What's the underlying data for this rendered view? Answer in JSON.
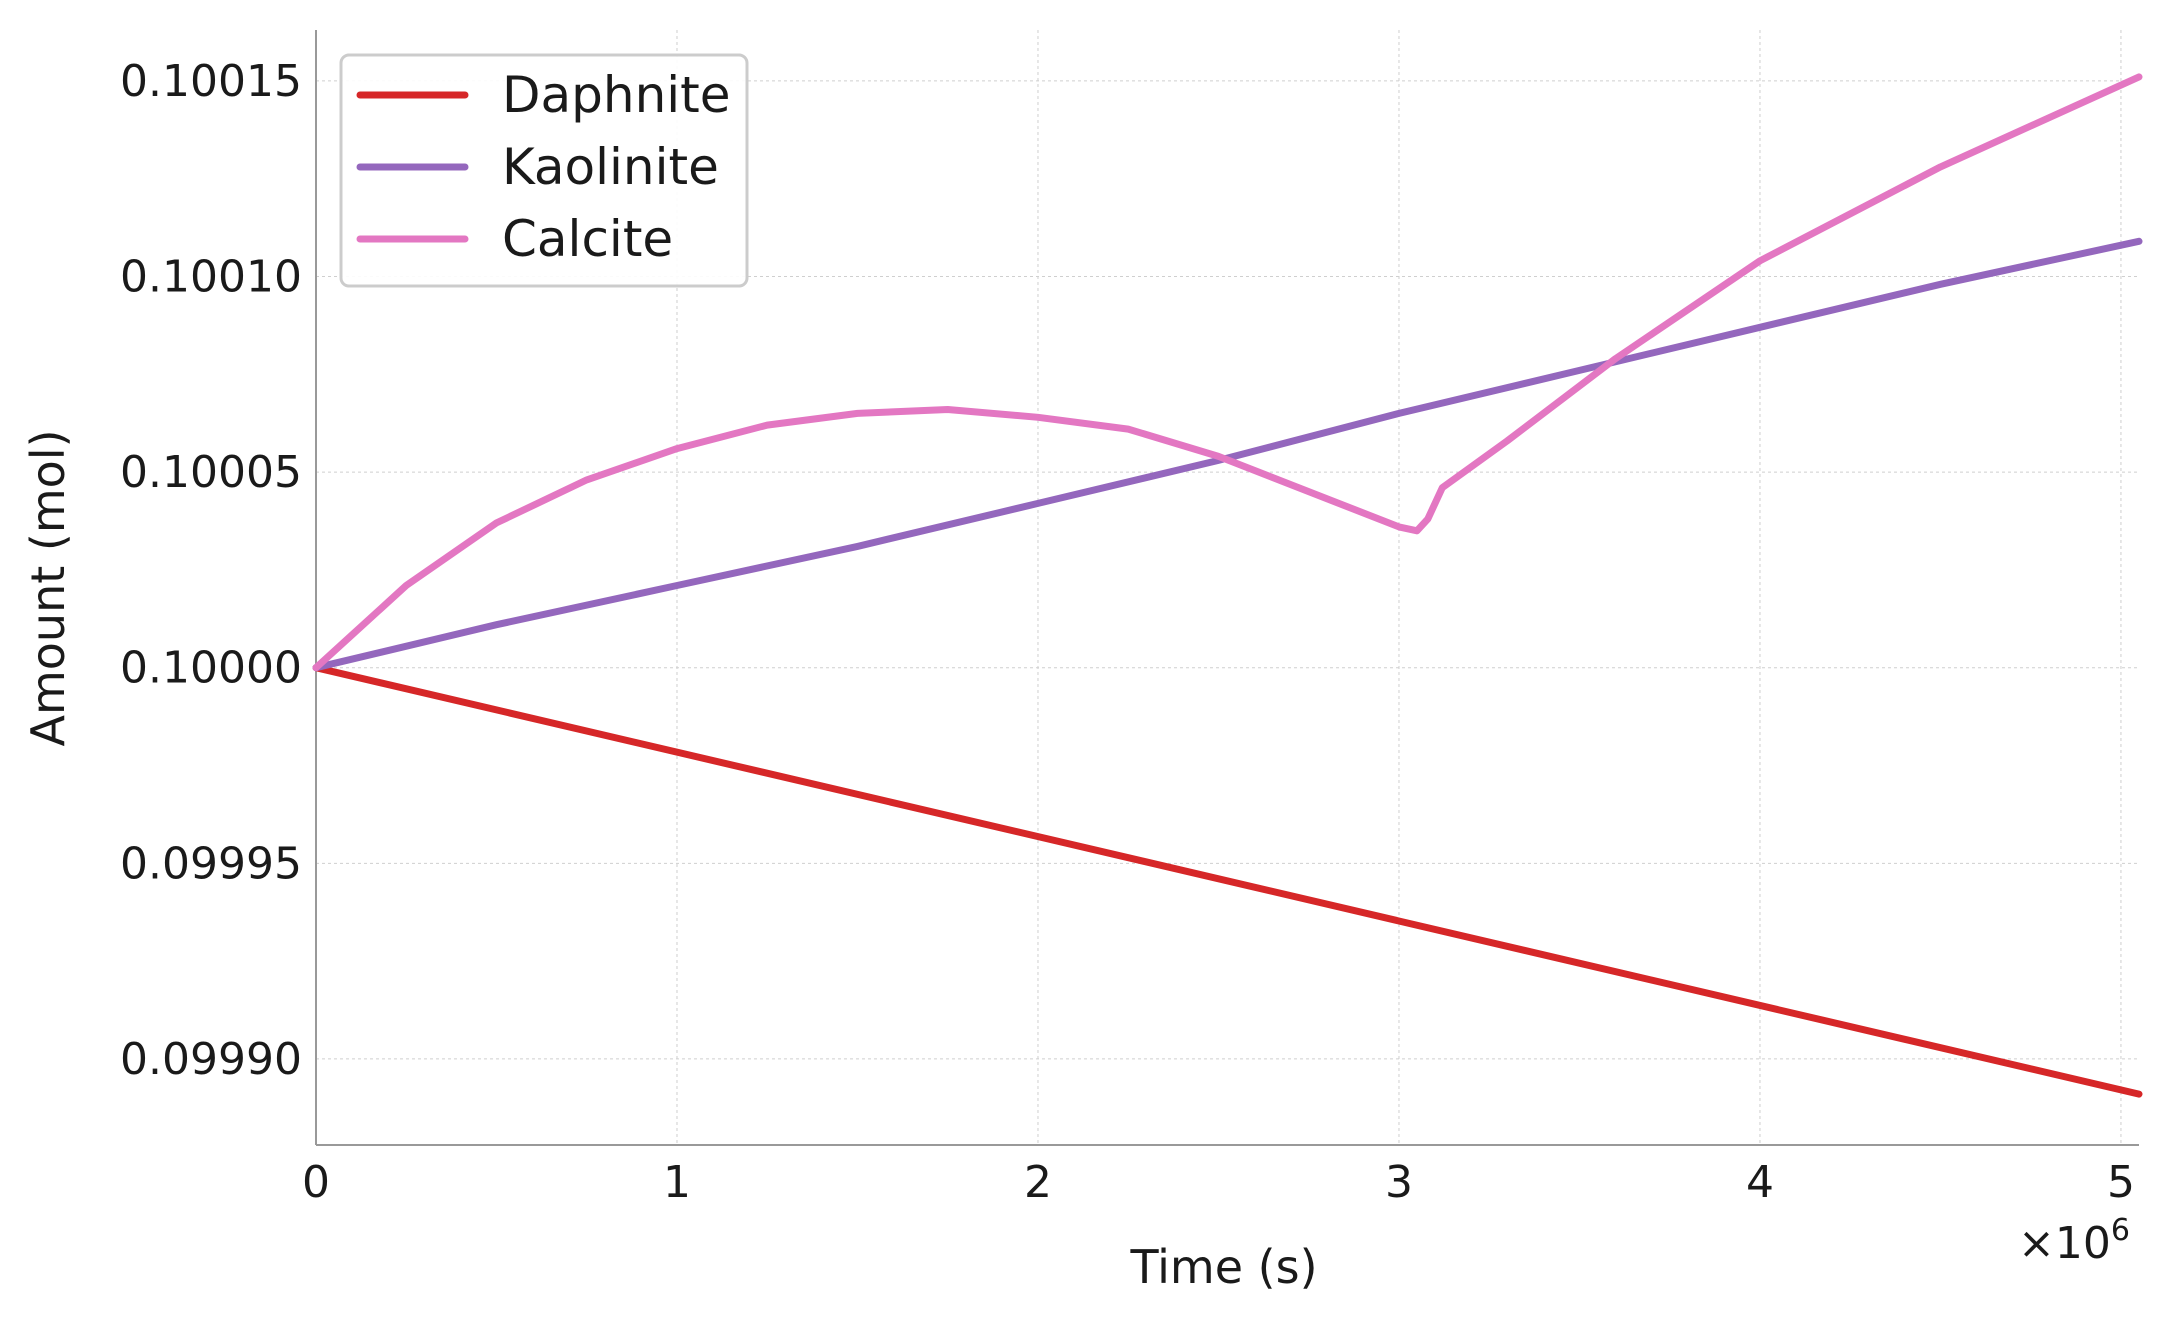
{
  "chart_data": {
    "type": "line",
    "title": "",
    "xlabel": "Time (s)",
    "ylabel": "Amount (mol)",
    "x_multiplier_label": "×10",
    "x_multiplier_exponent": "6",
    "xlim": [
      0,
      5.05
    ],
    "ylim": [
      0.099878,
      0.100163
    ],
    "xticks": [
      {
        "value": 0,
        "label": "0"
      },
      {
        "value": 1,
        "label": "1"
      },
      {
        "value": 2,
        "label": "2"
      },
      {
        "value": 3,
        "label": "3"
      },
      {
        "value": 4,
        "label": "4"
      },
      {
        "value": 5,
        "label": "5"
      }
    ],
    "yticks": [
      {
        "value": 0.0999,
        "label": "0.09990"
      },
      {
        "value": 0.09995,
        "label": "0.09995"
      },
      {
        "value": 0.1,
        "label": "0.10000"
      },
      {
        "value": 0.10005,
        "label": "0.10005"
      },
      {
        "value": 0.1001,
        "label": "0.10010"
      },
      {
        "value": 0.10015,
        "label": "0.10015"
      }
    ],
    "grid": true,
    "legend_position": "top-left",
    "series": [
      {
        "name": "Daphnite",
        "color": "#d62728",
        "x": [
          0,
          5.05
        ],
        "y": [
          0.1,
          0.099891
        ]
      },
      {
        "name": "Kaolinite",
        "color": "#9467bd",
        "x": [
          0,
          0.5,
          1,
          1.5,
          2,
          2.5,
          3,
          3.5,
          4,
          4.5,
          5.05
        ],
        "y": [
          0.1,
          0.100011,
          0.100021,
          0.100031,
          0.100042,
          0.100053,
          0.100065,
          0.100076,
          0.100087,
          0.100098,
          0.100109
        ]
      },
      {
        "name": "Calcite",
        "color": "#e377c2",
        "x": [
          0,
          0.25,
          0.5,
          0.75,
          1,
          1.25,
          1.5,
          1.75,
          2,
          2.25,
          2.5,
          2.75,
          3,
          3.05,
          3.08,
          3.12,
          3.3,
          3.6,
          4,
          4.5,
          5.05
        ],
        "y": [
          0.1,
          0.100021,
          0.100037,
          0.100048,
          0.100056,
          0.100062,
          0.100065,
          0.100066,
          0.100064,
          0.100061,
          0.100054,
          0.100045,
          0.100036,
          0.100035,
          0.100038,
          0.100046,
          0.100058,
          0.100079,
          0.100104,
          0.100128,
          0.100151
        ]
      }
    ]
  }
}
